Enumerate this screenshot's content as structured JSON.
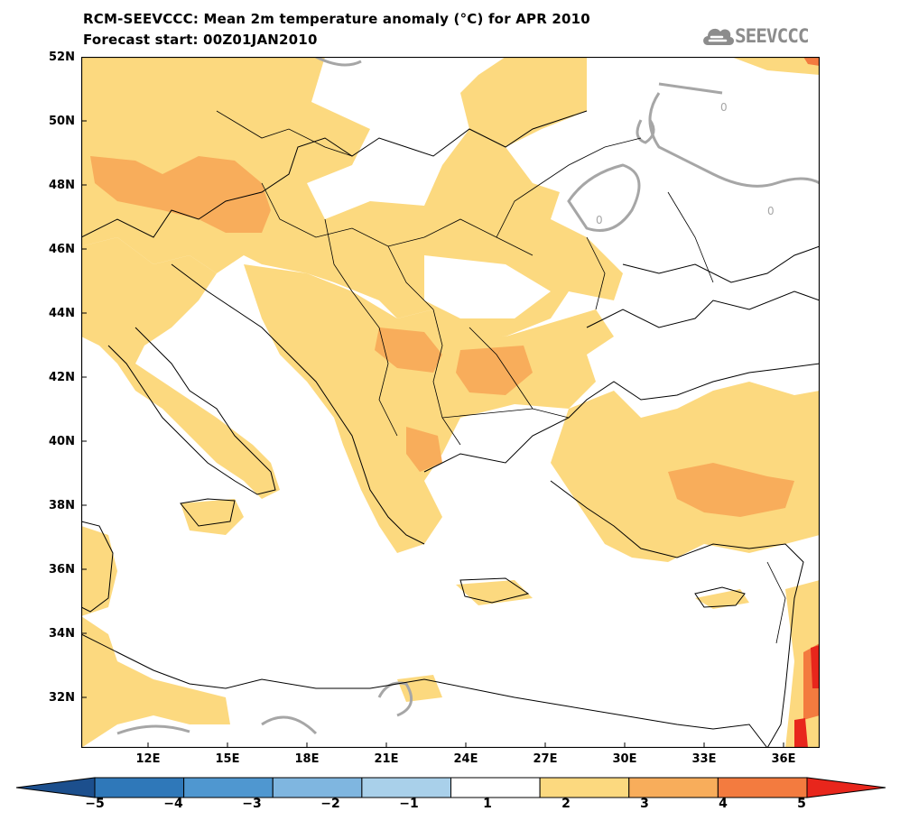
{
  "title": {
    "line1": "RCM-SEEVCCC: Mean 2m temperature anomaly (°C) for APR 2010",
    "line2": "Forecast start: 00Z01JAN2010"
  },
  "logo": {
    "text": "SEEVCCC",
    "icon": "cloud-icon"
  },
  "map": {
    "lat_labels": [
      "52N",
      "50N",
      "48N",
      "46N",
      "44N",
      "42N",
      "40N",
      "38N",
      "36N",
      "34N",
      "32N"
    ],
    "lon_labels": [
      "12E",
      "15E",
      "18E",
      "21E",
      "24E",
      "27E",
      "30E",
      "33E",
      "36E"
    ],
    "contour_label": "0",
    "colors": {
      "anom_1_2": "#fcd97f",
      "anom_2_3": "#f8ad5b",
      "anom_3_4": "#f37b3f",
      "anom_4_5": "#e8261c",
      "contour": "#a6a6a6",
      "coast": "#000000"
    }
  },
  "colorbar": {
    "labels": [
      "−5",
      "−4",
      "−3",
      "−2",
      "−1",
      "1",
      "2",
      "3",
      "4",
      "5"
    ],
    "colors": [
      "#1c4f8d",
      "#2f78b9",
      "#4f97d0",
      "#7fb6e0",
      "#a9d0ea",
      "#ffffff",
      "#fcd97f",
      "#f8ad5b",
      "#f37b3f",
      "#e8261c"
    ]
  }
}
